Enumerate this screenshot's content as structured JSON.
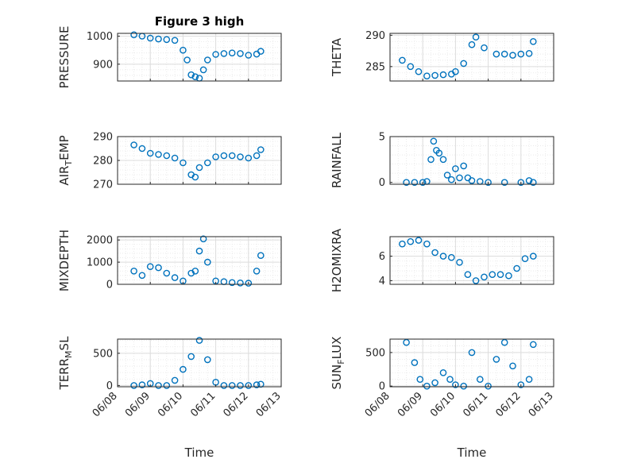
{
  "chart_data": [
    {
      "type": "scatter",
      "title": "Figure 3 high",
      "ylabel": "PRESSURE",
      "ylim": [
        840,
        1010
      ],
      "yticks": [
        900,
        1000
      ],
      "xticks": [
        "06/08",
        "06/09",
        "06/10",
        "06/11",
        "06/12",
        "06/13"
      ],
      "xlim": [
        "06/08",
        "06/13"
      ],
      "grid": true,
      "color": "#0072BD",
      "x": [
        "06/08 12:00",
        "06/08 18:00",
        "06/09 00:00",
        "06/09 06:00",
        "06/09 12:00",
        "06/09 18:00",
        "06/10 00:00",
        "06/10 03:00",
        "06/10 06:00",
        "06/10 09:00",
        "06/10 12:00",
        "06/10 15:00",
        "06/10 18:00",
        "06/11 00:00",
        "06/11 06:00",
        "06/11 12:00",
        "06/11 18:00",
        "06/12 00:00",
        "06/12 06:00",
        "06/12 09:00"
      ],
      "y": [
        1005,
        1000,
        993,
        990,
        988,
        985,
        950,
        915,
        862,
        855,
        850,
        880,
        915,
        935,
        938,
        940,
        938,
        932,
        936,
        946
      ]
    },
    {
      "type": "scatter",
      "title": "",
      "ylabel": "THETA",
      "ylim": [
        282.7,
        290.3
      ],
      "yticks": [
        285,
        290
      ],
      "xticks": [
        "06/08",
        "06/09",
        "06/10",
        "06/11",
        "06/12",
        "06/13"
      ],
      "xlim": [
        "06/08",
        "06/13"
      ],
      "grid": true,
      "color": "#0072BD",
      "x": [
        "06/08 09:00",
        "06/08 15:00",
        "06/08 21:00",
        "06/09 03:00",
        "06/09 09:00",
        "06/09 15:00",
        "06/09 21:00",
        "06/10 00:00",
        "06/10 06:00",
        "06/10 12:00",
        "06/10 15:00",
        "06/10 21:00",
        "06/11 06:00",
        "06/11 12:00",
        "06/11 18:00",
        "06/12 00:00",
        "06/12 06:00",
        "06/12 09:00"
      ],
      "y": [
        286.0,
        285.0,
        284.2,
        283.5,
        283.6,
        283.7,
        283.8,
        284.2,
        285.5,
        288.5,
        289.7,
        288.0,
        287.0,
        287.0,
        286.8,
        287.0,
        287.1,
        289.0
      ]
    },
    {
      "type": "scatter",
      "title": "",
      "ylabel": "AIR_TEMP",
      "ylim": [
        270,
        290
      ],
      "yticks": [
        270,
        280,
        290
      ],
      "xticks": [
        "06/08",
        "06/09",
        "06/10",
        "06/11",
        "06/12",
        "06/13"
      ],
      "xlim": [
        "06/08",
        "06/13"
      ],
      "grid": true,
      "color": "#0072BD",
      "x": [
        "06/08 12:00",
        "06/08 18:00",
        "06/09 00:00",
        "06/09 06:00",
        "06/09 12:00",
        "06/09 18:00",
        "06/10 00:00",
        "06/10 06:00",
        "06/10 09:00",
        "06/10 12:00",
        "06/10 18:00",
        "06/11 00:00",
        "06/11 06:00",
        "06/11 12:00",
        "06/11 18:00",
        "06/12 00:00",
        "06/12 06:00",
        "06/12 09:00"
      ],
      "y": [
        286.5,
        285.0,
        283.0,
        282.5,
        282.0,
        281.0,
        279.0,
        274.0,
        273.0,
        277.0,
        279.0,
        281.5,
        282.0,
        282.0,
        281.5,
        281.0,
        282.0,
        284.5
      ]
    },
    {
      "type": "scatter",
      "title": "",
      "ylabel": "RAINFALL",
      "ylim": [
        -0.2,
        5.0
      ],
      "yticks": [
        0,
        5
      ],
      "xticks": [
        "06/08",
        "06/09",
        "06/10",
        "06/11",
        "06/12",
        "06/13"
      ],
      "xlim": [
        "06/08",
        "06/13"
      ],
      "grid": true,
      "color": "#0072BD",
      "x": [
        "06/08 12:00",
        "06/08 18:00",
        "06/09 00:00",
        "06/09 03:00",
        "06/09 06:00",
        "06/09 08:00",
        "06/09 10:00",
        "06/09 12:00",
        "06/09 15:00",
        "06/09 18:00",
        "06/09 21:00",
        "06/10 00:00",
        "06/10 03:00",
        "06/10 06:00",
        "06/10 09:00",
        "06/10 12:00",
        "06/10 18:00",
        "06/11 00:00",
        "06/11 12:00",
        "06/12 00:00",
        "06/12 06:00",
        "06/12 09:00"
      ],
      "y": [
        0,
        0,
        0,
        0.1,
        2.5,
        4.5,
        3.5,
        3.2,
        2.5,
        0.8,
        0.3,
        1.5,
        0.5,
        1.8,
        0.5,
        0.2,
        0.1,
        0,
        0,
        0,
        0.2,
        0
      ]
    },
    {
      "type": "scatter",
      "title": "",
      "ylabel": "MIXDEPTH",
      "ylim": [
        0,
        2150
      ],
      "yticks": [
        0,
        1000,
        2000
      ],
      "xticks": [
        "06/08",
        "06/09",
        "06/10",
        "06/11",
        "06/12",
        "06/13"
      ],
      "xlim": [
        "06/08",
        "06/13"
      ],
      "grid": true,
      "color": "#0072BD",
      "x": [
        "06/08 12:00",
        "06/08 18:00",
        "06/09 00:00",
        "06/09 06:00",
        "06/09 12:00",
        "06/09 18:00",
        "06/10 00:00",
        "06/10 06:00",
        "06/10 09:00",
        "06/10 12:00",
        "06/10 15:00",
        "06/10 18:00",
        "06/11 00:00",
        "06/11 06:00",
        "06/11 12:00",
        "06/11 18:00",
        "06/12 00:00",
        "06/12 06:00",
        "06/12 09:00"
      ],
      "y": [
        600,
        400,
        800,
        750,
        500,
        300,
        150,
        500,
        600,
        1500,
        2050,
        1000,
        150,
        120,
        80,
        60,
        50,
        600,
        1300
      ]
    },
    {
      "type": "scatter",
      "title": "",
      "ylabel": "H2OMIXRA",
      "ylim": [
        3.7,
        7.6
      ],
      "yticks": [
        4,
        6
      ],
      "xticks": [
        "06/08",
        "06/09",
        "06/10",
        "06/11",
        "06/12",
        "06/13"
      ],
      "xlim": [
        "06/08",
        "06/13"
      ],
      "grid": true,
      "color": "#0072BD",
      "x": [
        "06/08 09:00",
        "06/08 15:00",
        "06/08 21:00",
        "06/09 03:00",
        "06/09 09:00",
        "06/09 15:00",
        "06/09 21:00",
        "06/10 03:00",
        "06/10 09:00",
        "06/10 15:00",
        "06/10 21:00",
        "06/11 03:00",
        "06/11 09:00",
        "06/11 15:00",
        "06/11 21:00",
        "06/12 03:00",
        "06/12 09:00"
      ],
      "y": [
        7.0,
        7.2,
        7.3,
        7.0,
        6.3,
        6.0,
        5.9,
        5.5,
        4.5,
        4.0,
        4.3,
        4.5,
        4.5,
        4.4,
        5.0,
        5.8,
        6.0
      ]
    },
    {
      "type": "scatter",
      "title": "",
      "ylabel": "TERR_MSL",
      "ylim": [
        -20,
        720
      ],
      "yticks": [
        0,
        500
      ],
      "xticks": [
        "06/08",
        "06/09",
        "06/10",
        "06/11",
        "06/12",
        "06/13"
      ],
      "xlim": [
        "06/08",
        "06/13"
      ],
      "grid": true,
      "color": "#0072BD",
      "x": [
        "06/08 12:00",
        "06/08 18:00",
        "06/09 00:00",
        "06/09 06:00",
        "06/09 12:00",
        "06/09 18:00",
        "06/10 00:00",
        "06/10 06:00",
        "06/10 12:00",
        "06/10 18:00",
        "06/11 00:00",
        "06/11 06:00",
        "06/11 12:00",
        "06/11 18:00",
        "06/12 00:00",
        "06/12 06:00",
        "06/12 09:00"
      ],
      "y": [
        0,
        10,
        30,
        0,
        0,
        80,
        250,
        450,
        700,
        400,
        50,
        0,
        0,
        0,
        0,
        10,
        20
      ]
    },
    {
      "type": "scatter",
      "title": "",
      "ylabel": "SUN_FLUX",
      "ylim": [
        -10,
        700
      ],
      "yticks": [
        0,
        500
      ],
      "xticks": [
        "06/08",
        "06/09",
        "06/10",
        "06/11",
        "06/12",
        "06/13"
      ],
      "xlim": [
        "06/08",
        "06/13"
      ],
      "grid": true,
      "color": "#0072BD",
      "x": [
        "06/08 12:00",
        "06/08 18:00",
        "06/08 22:00",
        "06/09 03:00",
        "06/09 09:00",
        "06/09 15:00",
        "06/09 20:00",
        "06/10 00:00",
        "06/10 06:00",
        "06/10 12:00",
        "06/10 18:00",
        "06/11 00:00",
        "06/11 06:00",
        "06/11 12:00",
        "06/11 18:00",
        "06/12 00:00",
        "06/12 06:00",
        "06/12 09:00"
      ],
      "y": [
        650,
        350,
        100,
        0,
        50,
        200,
        100,
        20,
        0,
        500,
        100,
        0,
        400,
        650,
        300,
        20,
        100,
        620
      ]
    }
  ],
  "xlabel": "Time"
}
